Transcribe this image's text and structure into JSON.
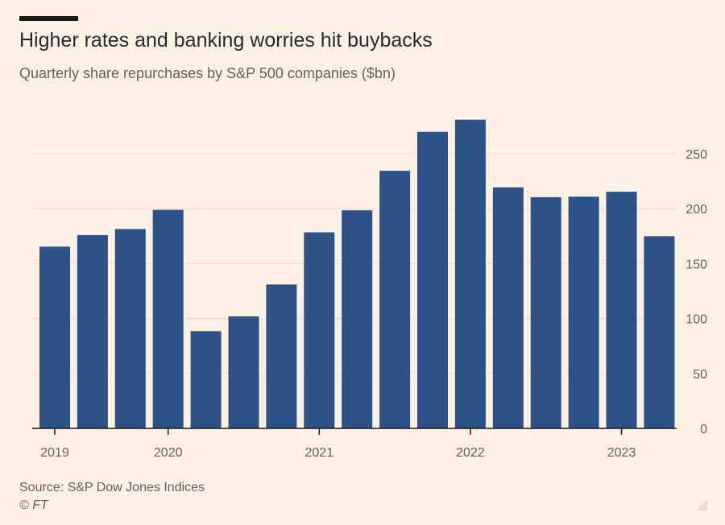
{
  "title": "Higher rates and banking worries hit buybacks",
  "subtitle": "Quarterly share repurchases by S&P 500 companies ($bn)",
  "source": "Source: S&P Dow Jones Indices",
  "credit": "© FT",
  "colors": {
    "background": "#fdf1e6",
    "bar": "#2e5288",
    "grid": "#e9ded3",
    "axis": "#1a1a1a",
    "text": "#66605c"
  },
  "chart_data": {
    "type": "bar",
    "categories": [
      "2019 Q1",
      "2019 Q2",
      "2019 Q3",
      "2019 Q4",
      "2020 Q1",
      "2020 Q2",
      "2020 Q3",
      "2020 Q4",
      "2021 Q1",
      "2021 Q2",
      "2021 Q3",
      "2021 Q4",
      "2022 Q1",
      "2022 Q2",
      "2022 Q3",
      "2022 Q4",
      "2023 Q1"
    ],
    "values": [
      165.5,
      176,
      181.5,
      199,
      88.5,
      102,
      131,
      178.5,
      198.5,
      234.5,
      270,
      281,
      219.5,
      210.5,
      211,
      215.5,
      175
    ],
    "x_tick_labels": [
      {
        "label": "2019",
        "index": 0
      },
      {
        "label": "2020",
        "index": 3
      },
      {
        "label": "2021",
        "index": 7
      },
      {
        "label": "2022",
        "index": 11
      },
      {
        "label": "2023",
        "index": 15
      }
    ],
    "y_ticks": [
      0,
      50,
      100,
      150,
      200,
      250
    ],
    "ylim": [
      0,
      290
    ],
    "y_axis_side": "right",
    "grid": true,
    "legend": "none"
  }
}
